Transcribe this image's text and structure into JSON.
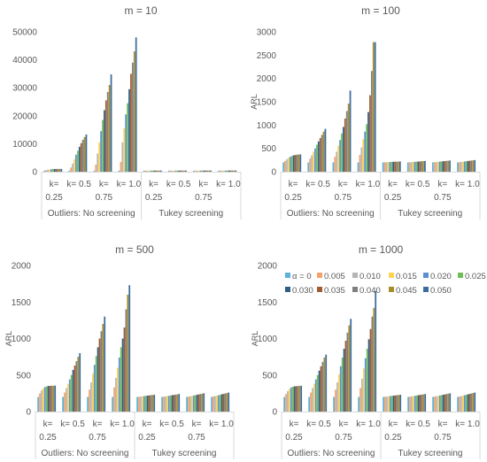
{
  "legend": {
    "placement": "top (inside the m = 1000 panel)",
    "labels": [
      "α = 0",
      "0.005",
      "0.010",
      "0.015",
      "0.020",
      "0.025",
      "0.030",
      "0.035",
      "0.040",
      "0.045",
      "0.050"
    ],
    "colors": [
      "#5BB3D9",
      "#F4A16A",
      "#B5B5B5",
      "#FFD24F",
      "#5B8FD0",
      "#6FBF59",
      "#2E5E84",
      "#A35A30",
      "#7F7F7F",
      "#A88C2A",
      "#3B6C9E"
    ]
  },
  "chart_data": [
    {
      "type": "bar",
      "title": "m = 10",
      "ylabel": "",
      "ylim": [
        0,
        50000
      ],
      "yticks": [
        "0",
        "10000",
        "20000",
        "30000",
        "40000",
        "50000"
      ],
      "grid": false,
      "categories": [
        "k= 0.25",
        "k= 0.5",
        "k= 0.75",
        "k= 1.0",
        "k= 0.25",
        "k= 0.5",
        "k= 0.75",
        "k= 1.0"
      ],
      "groups": [
        "Outliers: No screening",
        "Tukey screening"
      ],
      "series_values": [
        [
          370,
          530,
          700,
          800,
          880,
          930,
          960,
          980,
          990,
          995,
          1000
        ],
        [
          370,
          1500,
          2900,
          4500,
          6100,
          7500,
          8900,
          10200,
          11400,
          12400,
          13300
        ],
        [
          370,
          2500,
          6500,
          10500,
          14500,
          18500,
          22000,
          25500,
          28500,
          31000,
          34800
        ],
        [
          370,
          3500,
          10500,
          15500,
          20500,
          24500,
          29500,
          35000,
          39000,
          43000,
          48000
        ],
        [
          370,
          370,
          375,
          380,
          385,
          390,
          395,
          400,
          405,
          410,
          415
        ],
        [
          370,
          372,
          378,
          385,
          390,
          395,
          400,
          405,
          410,
          415,
          420
        ],
        [
          370,
          373,
          380,
          388,
          395,
          400,
          405,
          410,
          415,
          420,
          425
        ],
        [
          370,
          375,
          382,
          390,
          398,
          405,
          410,
          415,
          420,
          425,
          430
        ]
      ]
    },
    {
      "type": "bar",
      "title": "m = 100",
      "ylabel": "ARL",
      "ylim": [
        0,
        3000
      ],
      "yticks": [
        "0",
        "500",
        "1000",
        "1500",
        "2000",
        "2500",
        "3000"
      ],
      "grid": false,
      "categories": [
        "k= 0.25",
        "k= 0.5",
        "k= 0.75",
        "k= 1.0",
        "k= 0.25",
        "k= 0.5",
        "k= 0.75",
        "k= 1.0"
      ],
      "groups": [
        "Outliers: No screening",
        "Tukey screening"
      ],
      "series_values": [
        [
          200,
          230,
          270,
          300,
          320,
          340,
          350,
          360,
          365,
          370,
          370
        ],
        [
          200,
          280,
          350,
          430,
          500,
          580,
          650,
          720,
          790,
          860,
          920
        ],
        [
          200,
          320,
          430,
          560,
          680,
          820,
          960,
          1140,
          1300,
          1460,
          1740
        ],
        [
          200,
          360,
          520,
          700,
          860,
          1020,
          1280,
          1640,
          2160,
          2780,
          2780
        ],
        [
          200,
          202,
          204,
          206,
          208,
          210,
          212,
          214,
          216,
          218,
          220
        ],
        [
          200,
          203,
          206,
          209,
          212,
          215,
          218,
          221,
          224,
          227,
          230
        ],
        [
          200,
          204,
          208,
          212,
          216,
          220,
          224,
          228,
          232,
          236,
          240
        ],
        [
          200,
          205,
          210,
          215,
          220,
          225,
          230,
          235,
          240,
          245,
          250
        ]
      ]
    },
    {
      "type": "bar",
      "title": "m = 500",
      "ylabel": "ARL",
      "ylim": [
        0,
        2000
      ],
      "yticks": [
        "0",
        "500",
        "1000",
        "1500",
        "2000"
      ],
      "grid": false,
      "categories": [
        "k= 0.25",
        "k= 0.5",
        "k= 0.75",
        "k= 1.0",
        "k= 0.25",
        "k= 0.5",
        "k= 0.75",
        "k= 1.0"
      ],
      "groups": [
        "Outliers: No screening",
        "Tukey screening"
      ],
      "series_values": [
        [
          200,
          250,
          290,
          320,
          335,
          345,
          350,
          352,
          353,
          354,
          355
        ],
        [
          200,
          260,
          320,
          380,
          440,
          500,
          570,
          630,
          690,
          750,
          800
        ],
        [
          200,
          300,
          400,
          520,
          640,
          760,
          880,
          1000,
          1100,
          1200,
          1300
        ],
        [
          200,
          330,
          460,
          600,
          740,
          880,
          1000,
          1150,
          1400,
          1600,
          1730
        ],
        [
          200,
          203,
          206,
          209,
          212,
          215,
          218,
          221,
          224,
          227,
          230
        ],
        [
          200,
          204,
          208,
          212,
          216,
          220,
          224,
          228,
          232,
          236,
          240
        ],
        [
          200,
          205,
          210,
          215,
          220,
          225,
          230,
          235,
          240,
          245,
          250
        ],
        [
          200,
          206,
          212,
          218,
          224,
          230,
          236,
          242,
          248,
          254,
          260
        ]
      ]
    },
    {
      "type": "bar",
      "title": "m = 1000",
      "ylabel": "ARL",
      "ylim": [
        0,
        2000
      ],
      "yticks": [
        "0",
        "500",
        "1000",
        "1500",
        "2000"
      ],
      "grid": false,
      "categories": [
        "k= 0.25",
        "k= 0.5",
        "k= 0.75",
        "k= 1.0",
        "k= 0.25",
        "k= 0.5",
        "k= 0.75",
        "k= 1.0"
      ],
      "groups": [
        "Outliers: No screening",
        "Tukey screening"
      ],
      "series_values": [
        [
          200,
          240,
          280,
          310,
          330,
          340,
          345,
          348,
          350,
          352,
          353
        ],
        [
          200,
          260,
          320,
          380,
          440,
          500,
          560,
          620,
          680,
          740,
          780
        ],
        [
          200,
          300,
          400,
          510,
          620,
          740,
          860,
          970,
          1080,
          1180,
          1270
        ],
        [
          200,
          320,
          450,
          590,
          730,
          860,
          990,
          1130,
          1300,
          1420,
          1650
        ],
        [
          200,
          203,
          206,
          209,
          212,
          215,
          218,
          221,
          224,
          227,
          230
        ],
        [
          200,
          204,
          208,
          212,
          216,
          220,
          224,
          228,
          232,
          236,
          240
        ],
        [
          200,
          205,
          210,
          215,
          220,
          225,
          230,
          235,
          240,
          245,
          250
        ],
        [
          200,
          206,
          212,
          218,
          224,
          230,
          236,
          242,
          248,
          254,
          260
        ]
      ]
    }
  ]
}
